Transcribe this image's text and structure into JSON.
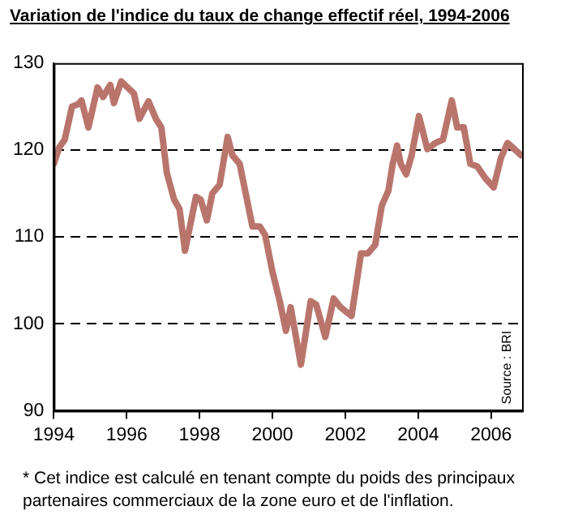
{
  "chart_data": {
    "type": "line",
    "title": "Variation de l'indice du taux de change effectif réel, 1994-2006",
    "annotations": [
      "Source : BRI",
      "* Cet indice est calculé en tenant compte du poids des principaux partenaires commerciaux de la zone euro et de l'inflation."
    ],
    "xlim": [
      1994,
      2006.85
    ],
    "xticks": [
      1994,
      1996,
      1998,
      2000,
      2002,
      2004,
      2006
    ],
    "ylim": [
      90,
      130
    ],
    "yticks": [
      90,
      100,
      110,
      120,
      130
    ],
    "grid": "y",
    "legend": false,
    "marker": "none",
    "line_style": "solid",
    "series": [
      {
        "color": "#b9756c",
        "x": [
          1994.0,
          1994.15,
          1994.3,
          1994.5,
          1994.68,
          1994.76,
          1994.95,
          1995.2,
          1995.35,
          1995.55,
          1995.65,
          1995.85,
          1996.2,
          1996.35,
          1996.6,
          1996.8,
          1996.95,
          1997.1,
          1997.3,
          1997.45,
          1997.6,
          1997.9,
          1998.03,
          1998.2,
          1998.35,
          1998.55,
          1998.77,
          1998.9,
          1999.1,
          1999.3,
          1999.45,
          1999.65,
          1999.8,
          2000.0,
          2000.2,
          2000.37,
          2000.5,
          2000.78,
          2001.05,
          2001.2,
          2001.45,
          2001.68,
          2001.87,
          2002.17,
          2002.43,
          2002.62,
          2002.82,
          2003.0,
          2003.18,
          2003.3,
          2003.42,
          2003.52,
          2003.67,
          2003.82,
          2004.02,
          2004.25,
          2004.47,
          2004.68,
          2004.92,
          2005.07,
          2005.25,
          2005.43,
          2005.62,
          2005.85,
          2006.07,
          2006.27,
          2006.45,
          2006.64,
          2006.82
        ],
        "values": [
          118.4,
          120.3,
          121.2,
          125,
          125.3,
          125.7,
          122.6,
          127.2,
          126.1,
          127.5,
          125.4,
          127.9,
          126.5,
          123.6,
          125.6,
          123.6,
          122.6,
          117.4,
          114.3,
          113.2,
          108.4,
          114.6,
          114.3,
          111.9,
          115,
          116,
          121.5,
          119.4,
          118.4,
          114.3,
          111.2,
          111.2,
          110.2,
          106,
          102.6,
          99.2,
          101.9,
          95.3,
          102.6,
          102.2,
          98.5,
          102.9,
          101.9,
          100.9,
          108.1,
          108.1,
          109.1,
          113.6,
          115.3,
          118.4,
          120.5,
          118.4,
          117.2,
          119.4,
          123.9,
          120.1,
          120.8,
          121.2,
          125.7,
          122.6,
          122.6,
          118.4,
          118.1,
          116.7,
          115.7,
          119.1,
          120.8,
          120.1,
          119.4
        ]
      }
    ]
  }
}
